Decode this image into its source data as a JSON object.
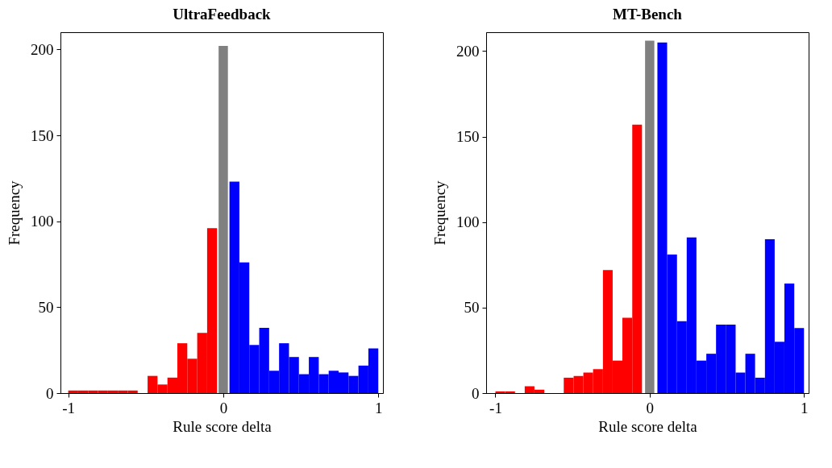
{
  "chart_data": [
    {
      "type": "histogram",
      "title": "UltraFeedback",
      "xlabel": "Rule score delta",
      "ylabel": "Frequency",
      "xlim": [
        -1.05,
        1.03
      ],
      "ylim": [
        0,
        210
      ],
      "xticks": [
        -1,
        0,
        1
      ],
      "yticks": [
        0,
        50,
        100,
        150,
        200
      ],
      "grid": false,
      "bins": [
        -1,
        -0.936,
        -0.872,
        -0.808,
        -0.744,
        -0.68,
        -0.616,
        -0.552,
        -0.488,
        -0.424,
        -0.36,
        -0.296,
        -0.232,
        -0.168,
        -0.104,
        -0.04,
        -0.03,
        0.03,
        0.04,
        0.104,
        0.168,
        0.232,
        0.296,
        0.36,
        0.424,
        0.488,
        0.552,
        0.616,
        0.68,
        0.744,
        0.808,
        0.872,
        0.936,
        1
      ],
      "values": [
        1.5,
        1.5,
        1.5,
        1.5,
        1.5,
        1.5,
        1.5,
        0,
        10,
        5,
        9,
        29,
        20,
        35,
        96,
        null,
        202,
        null,
        123,
        76,
        28,
        38,
        13,
        29,
        21,
        11,
        21,
        11,
        13,
        12,
        10,
        16,
        26
      ],
      "colors": [
        "#ff0000",
        "#ff0000",
        "#ff0000",
        "#ff0000",
        "#ff0000",
        "#ff0000",
        "#ff0000",
        "#ff0000",
        "#ff0000",
        "#ff0000",
        "#ff0000",
        "#ff0000",
        "#ff0000",
        "#ff0000",
        "#ff0000",
        null,
        "#808080",
        null,
        "#0000ff",
        "#0000ff",
        "#0000ff",
        "#0000ff",
        "#0000ff",
        "#0000ff",
        "#0000ff",
        "#0000ff",
        "#0000ff",
        "#0000ff",
        "#0000ff",
        "#0000ff",
        "#0000ff",
        "#0000ff",
        "#0000ff"
      ]
    },
    {
      "type": "histogram",
      "title": "MT-Bench",
      "xlabel": "Rule score delta",
      "ylabel": "Frequency",
      "xlim": [
        -1.06,
        1.03
      ],
      "ylim": [
        0,
        211
      ],
      "xticks": [
        -1,
        0,
        1
      ],
      "yticks": [
        0,
        50,
        100,
        150,
        200
      ],
      "grid": false,
      "bins": [
        -1,
        -0.937,
        -0.873,
        -0.81,
        -0.747,
        -0.683,
        -0.557,
        -0.493,
        -0.43,
        -0.367,
        -0.303,
        -0.24,
        -0.177,
        -0.113,
        -0.05,
        -0.03,
        0.03,
        0.05,
        0.113,
        0.177,
        0.24,
        0.303,
        0.367,
        0.43,
        0.493,
        0.557,
        0.62,
        0.683,
        0.747,
        0.81,
        0.873,
        0.937,
        1
      ],
      "values": [
        1,
        1,
        0,
        4,
        2,
        0,
        9,
        10,
        12,
        14,
        72,
        19,
        44,
        157,
        null,
        206,
        null,
        205,
        81,
        42,
        91,
        19,
        23,
        40,
        40,
        12,
        23,
        9,
        90,
        30,
        64,
        38
      ],
      "colors": [
        "#ff0000",
        "#ff0000",
        "#ff0000",
        "#ff0000",
        "#ff0000",
        "#ff0000",
        "#ff0000",
        "#ff0000",
        "#ff0000",
        "#ff0000",
        "#ff0000",
        "#ff0000",
        "#ff0000",
        "#ff0000",
        null,
        "#808080",
        null,
        "#0000ff",
        "#0000ff",
        "#0000ff",
        "#0000ff",
        "#0000ff",
        "#0000ff",
        "#0000ff",
        "#0000ff",
        "#0000ff",
        "#0000ff",
        "#0000ff",
        "#0000ff",
        "#0000ff",
        "#0000ff",
        "#0000ff"
      ]
    }
  ]
}
